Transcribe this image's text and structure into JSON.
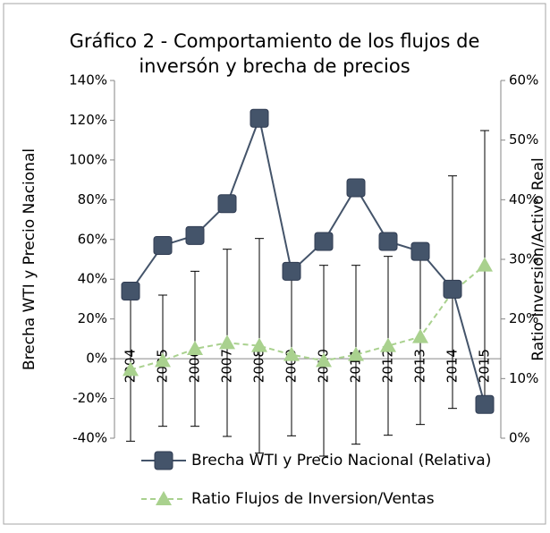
{
  "chart_data": {
    "type": "line",
    "title": [
      "Gráfico 2 - Comportamiento de los flujos de",
      "inversón y brecha de precios"
    ],
    "ylabel": "Brecha WTI y Precio Nacional",
    "y2label": "Ratio Inversion/Activo Real",
    "categories": [
      "2004",
      "2005",
      "2006",
      "2007",
      "2008",
      "2009",
      "2010",
      "2011",
      "2012",
      "2013",
      "2014",
      "2015"
    ],
    "series": [
      {
        "name": "Brecha WTI y Precio Nacional (Relativa)",
        "color": "#44546a",
        "marker": "square",
        "dashed": false,
        "values": [
          34,
          57,
          62,
          78,
          121,
          44,
          59,
          86,
          59,
          54,
          35,
          -23
        ]
      },
      {
        "name": "Ratio Flujos de Inversion/Ventas",
        "color": "#a9d18e",
        "marker": "triangle",
        "dashed": true,
        "axis": "y2",
        "values": [
          11.5,
          13,
          15,
          16,
          15.5,
          14,
          13,
          14,
          15.5,
          17,
          24.5,
          29
        ],
        "errors": [
          12,
          11,
          13,
          15.7,
          18,
          13.6,
          16,
          15,
          15,
          14.7,
          19.5,
          22.6
        ]
      }
    ],
    "ylim": [
      -40,
      140
    ],
    "yticks": [
      {
        "value": -40,
        "label": "-40%"
      },
      {
        "value": -20,
        "label": "-20%"
      },
      {
        "value": 0,
        "label": "0%"
      },
      {
        "value": 20,
        "label": "20%"
      },
      {
        "value": 40,
        "label": "40%"
      },
      {
        "value": 60,
        "label": "60%"
      },
      {
        "value": 80,
        "label": "80%"
      },
      {
        "value": 100,
        "label": "100%"
      },
      {
        "value": 120,
        "label": "120%"
      },
      {
        "value": 140,
        "label": "140%"
      }
    ],
    "y2lim": [
      0,
      60
    ],
    "y2ticks": [
      {
        "value": 0,
        "label": "0%"
      },
      {
        "value": 10,
        "label": "10%"
      },
      {
        "value": 20,
        "label": "20%"
      },
      {
        "value": 30,
        "label": "30%"
      },
      {
        "value": 40,
        "label": "40%"
      },
      {
        "value": 50,
        "label": "50%"
      },
      {
        "value": 60,
        "label": "60%"
      }
    ],
    "legend": "bottom"
  }
}
